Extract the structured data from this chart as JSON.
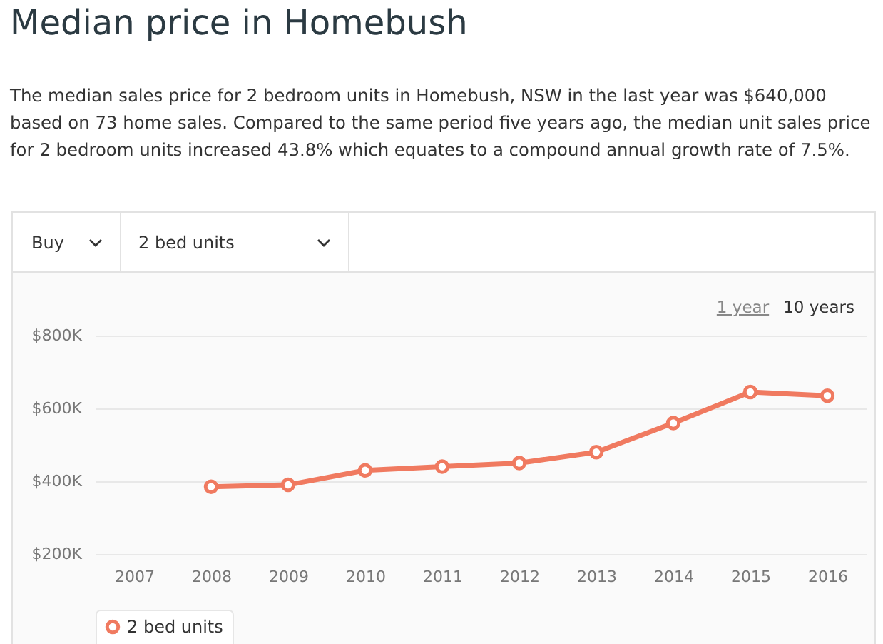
{
  "chart_data": {
    "type": "line",
    "title": "Median price in Homebush",
    "subtitle": "The median sales price for 2 bedroom units in Homebush, NSW in the last year was $640,000 based on 73 home sales. Compared to the same period five years ago, the median unit sales price for 2 bedroom units increased 43.8% which equates to a compound annual growth rate of 7.5%.",
    "annotations": [
      "Buy",
      "2 bed units",
      "1 year",
      "10 years"
    ],
    "categories": [
      "2007",
      "2008",
      "2009",
      "2010",
      "2011",
      "2012",
      "2013",
      "2014",
      "2015",
      "2016"
    ],
    "series": [
      {
        "name": "2 bed units",
        "color": "#f07a60",
        "values": [
          null,
          385000,
          390000,
          430000,
          440000,
          450000,
          480000,
          560000,
          645000,
          635000
        ]
      }
    ],
    "ylim": [
      200000,
      800000
    ],
    "yticks": [
      {
        "value": 200000,
        "label": "$200K"
      },
      {
        "value": 400000,
        "label": "$400K"
      },
      {
        "value": 600000,
        "label": "$600K"
      },
      {
        "value": 800000,
        "label": "$800K"
      }
    ],
    "grid": "y",
    "legend": "bottom",
    "marker": "circle",
    "line_style": "solid"
  }
}
